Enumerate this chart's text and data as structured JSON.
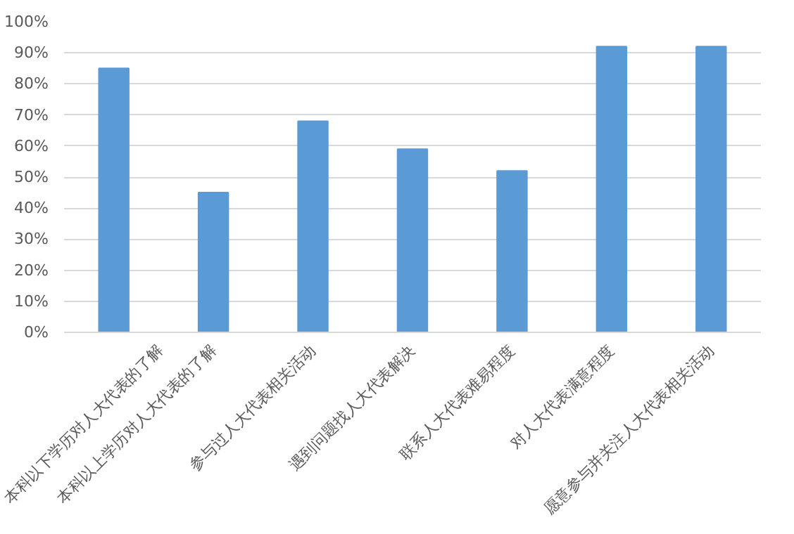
{
  "chart_data": {
    "type": "bar",
    "categories": [
      "本科以下学历对人大代表的了解",
      "本科以上学历对人大代表的了解",
      "参与过人大代表相关活动",
      "遇到问题找人大代表解决",
      "联系人大代表难易程度",
      "对人大代表满意程度",
      "愿意参与并关注人大代表相关活动"
    ],
    "values": [
      85,
      45,
      68,
      59,
      52,
      92,
      92
    ],
    "color": "#5b9bd5",
    "ylim": [
      0,
      100
    ],
    "yticks": [
      {
        "value": 0,
        "label": "0%"
      },
      {
        "value": 10,
        "label": "10%"
      },
      {
        "value": 20,
        "label": "20%"
      },
      {
        "value": 30,
        "label": "30%"
      },
      {
        "value": 40,
        "label": "40%"
      },
      {
        "value": 50,
        "label": "50%"
      },
      {
        "value": 60,
        "label": "60%"
      },
      {
        "value": 70,
        "label": "70%"
      },
      {
        "value": 80,
        "label": "80%"
      },
      {
        "value": 90,
        "label": "90%"
      },
      {
        "value": 100,
        "label": "100%"
      }
    ],
    "grid": "y"
  }
}
